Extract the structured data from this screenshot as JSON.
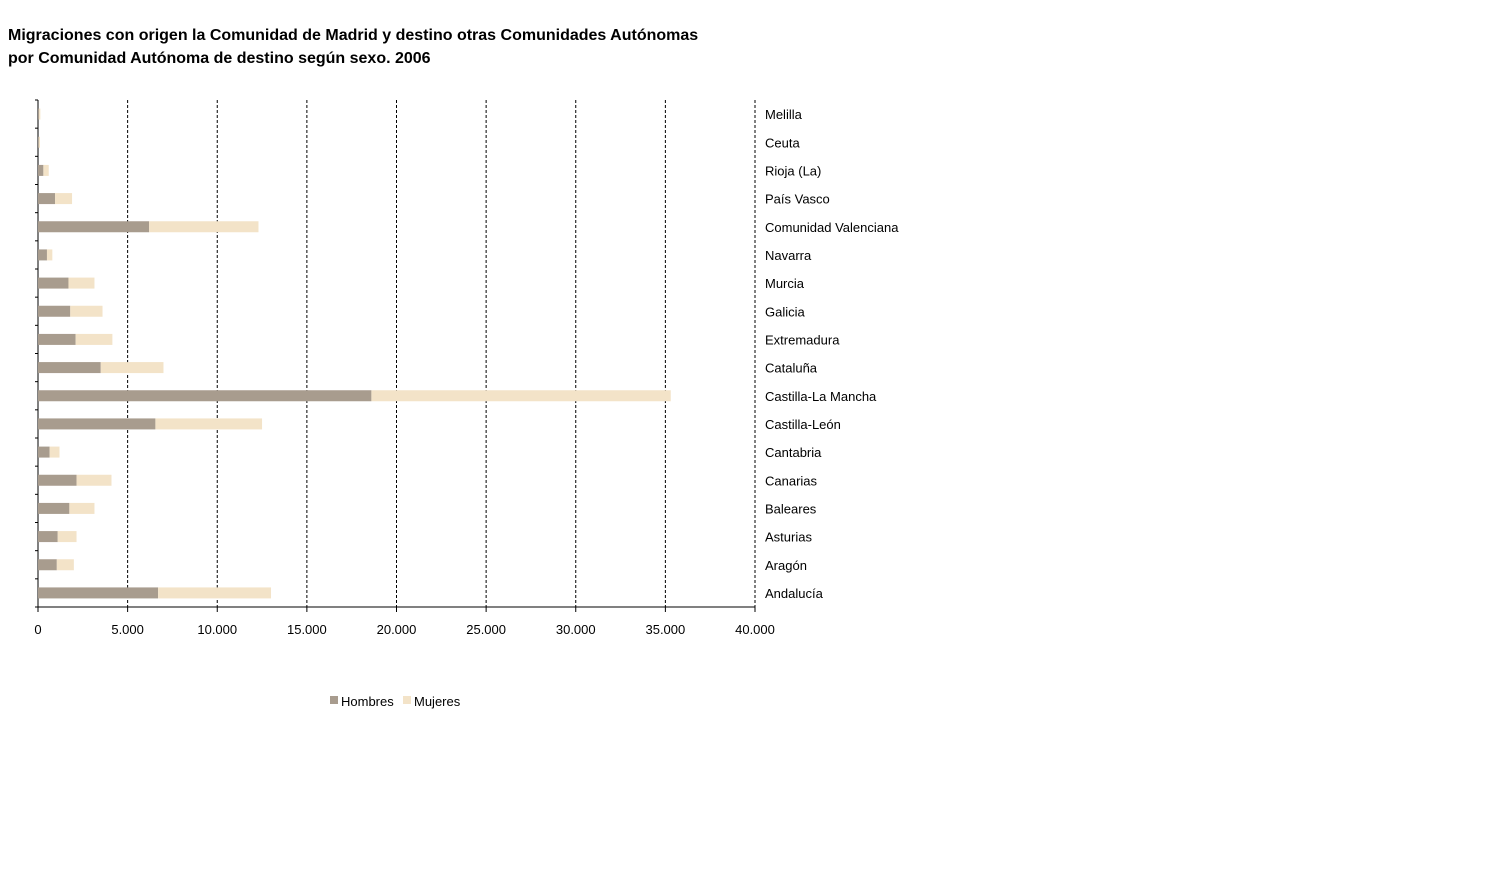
{
  "chart_data": {
    "type": "bar",
    "orientation": "horizontal",
    "stacked": true,
    "title": "Migraciones con origen la Comunidad de Madrid y destino otras Comunidades Autónomas",
    "subtitle": "por Comunidad Autónoma de destino según sexo. 2006",
    "xlabel": "",
    "ylabel": "",
    "xlim": [
      0,
      40000
    ],
    "x_ticks": [
      0,
      5000,
      10000,
      15000,
      20000,
      25000,
      30000,
      35000,
      40000
    ],
    "x_tick_labels": [
      "0",
      "5.000",
      "10.000",
      "15.000",
      "20.000",
      "25.000",
      "30.000",
      "35.000",
      "40.000"
    ],
    "grid": "vertical dashed",
    "legend_position": "bottom",
    "categories": [
      "Melilla",
      "Ceuta",
      "Rioja (La)",
      "País Vasco",
      "Comunidad Valenciana",
      "Navarra",
      "Murcia",
      "Galicia",
      "Extremadura",
      "Cataluña",
      "Castilla-La Mancha",
      "Castilla-León",
      "Cantabria",
      "Canarias",
      "Baleares",
      "Asturias",
      "Aragón",
      "Andalucía"
    ],
    "series": [
      {
        "name": "Hombres",
        "color": "#a89c8e",
        "values": [
          60,
          50,
          300,
          950,
          6200,
          500,
          1700,
          1800,
          2100,
          3500,
          18600,
          6550,
          650,
          2150,
          1750,
          1100,
          1050,
          6700
        ]
      },
      {
        "name": "Mujeres",
        "color": "#f3e3c8",
        "values": [
          70,
          60,
          300,
          950,
          6100,
          300,
          1450,
          1800,
          2050,
          3500,
          16700,
          5950,
          550,
          1950,
          1400,
          1050,
          950,
          6300
        ]
      }
    ]
  }
}
